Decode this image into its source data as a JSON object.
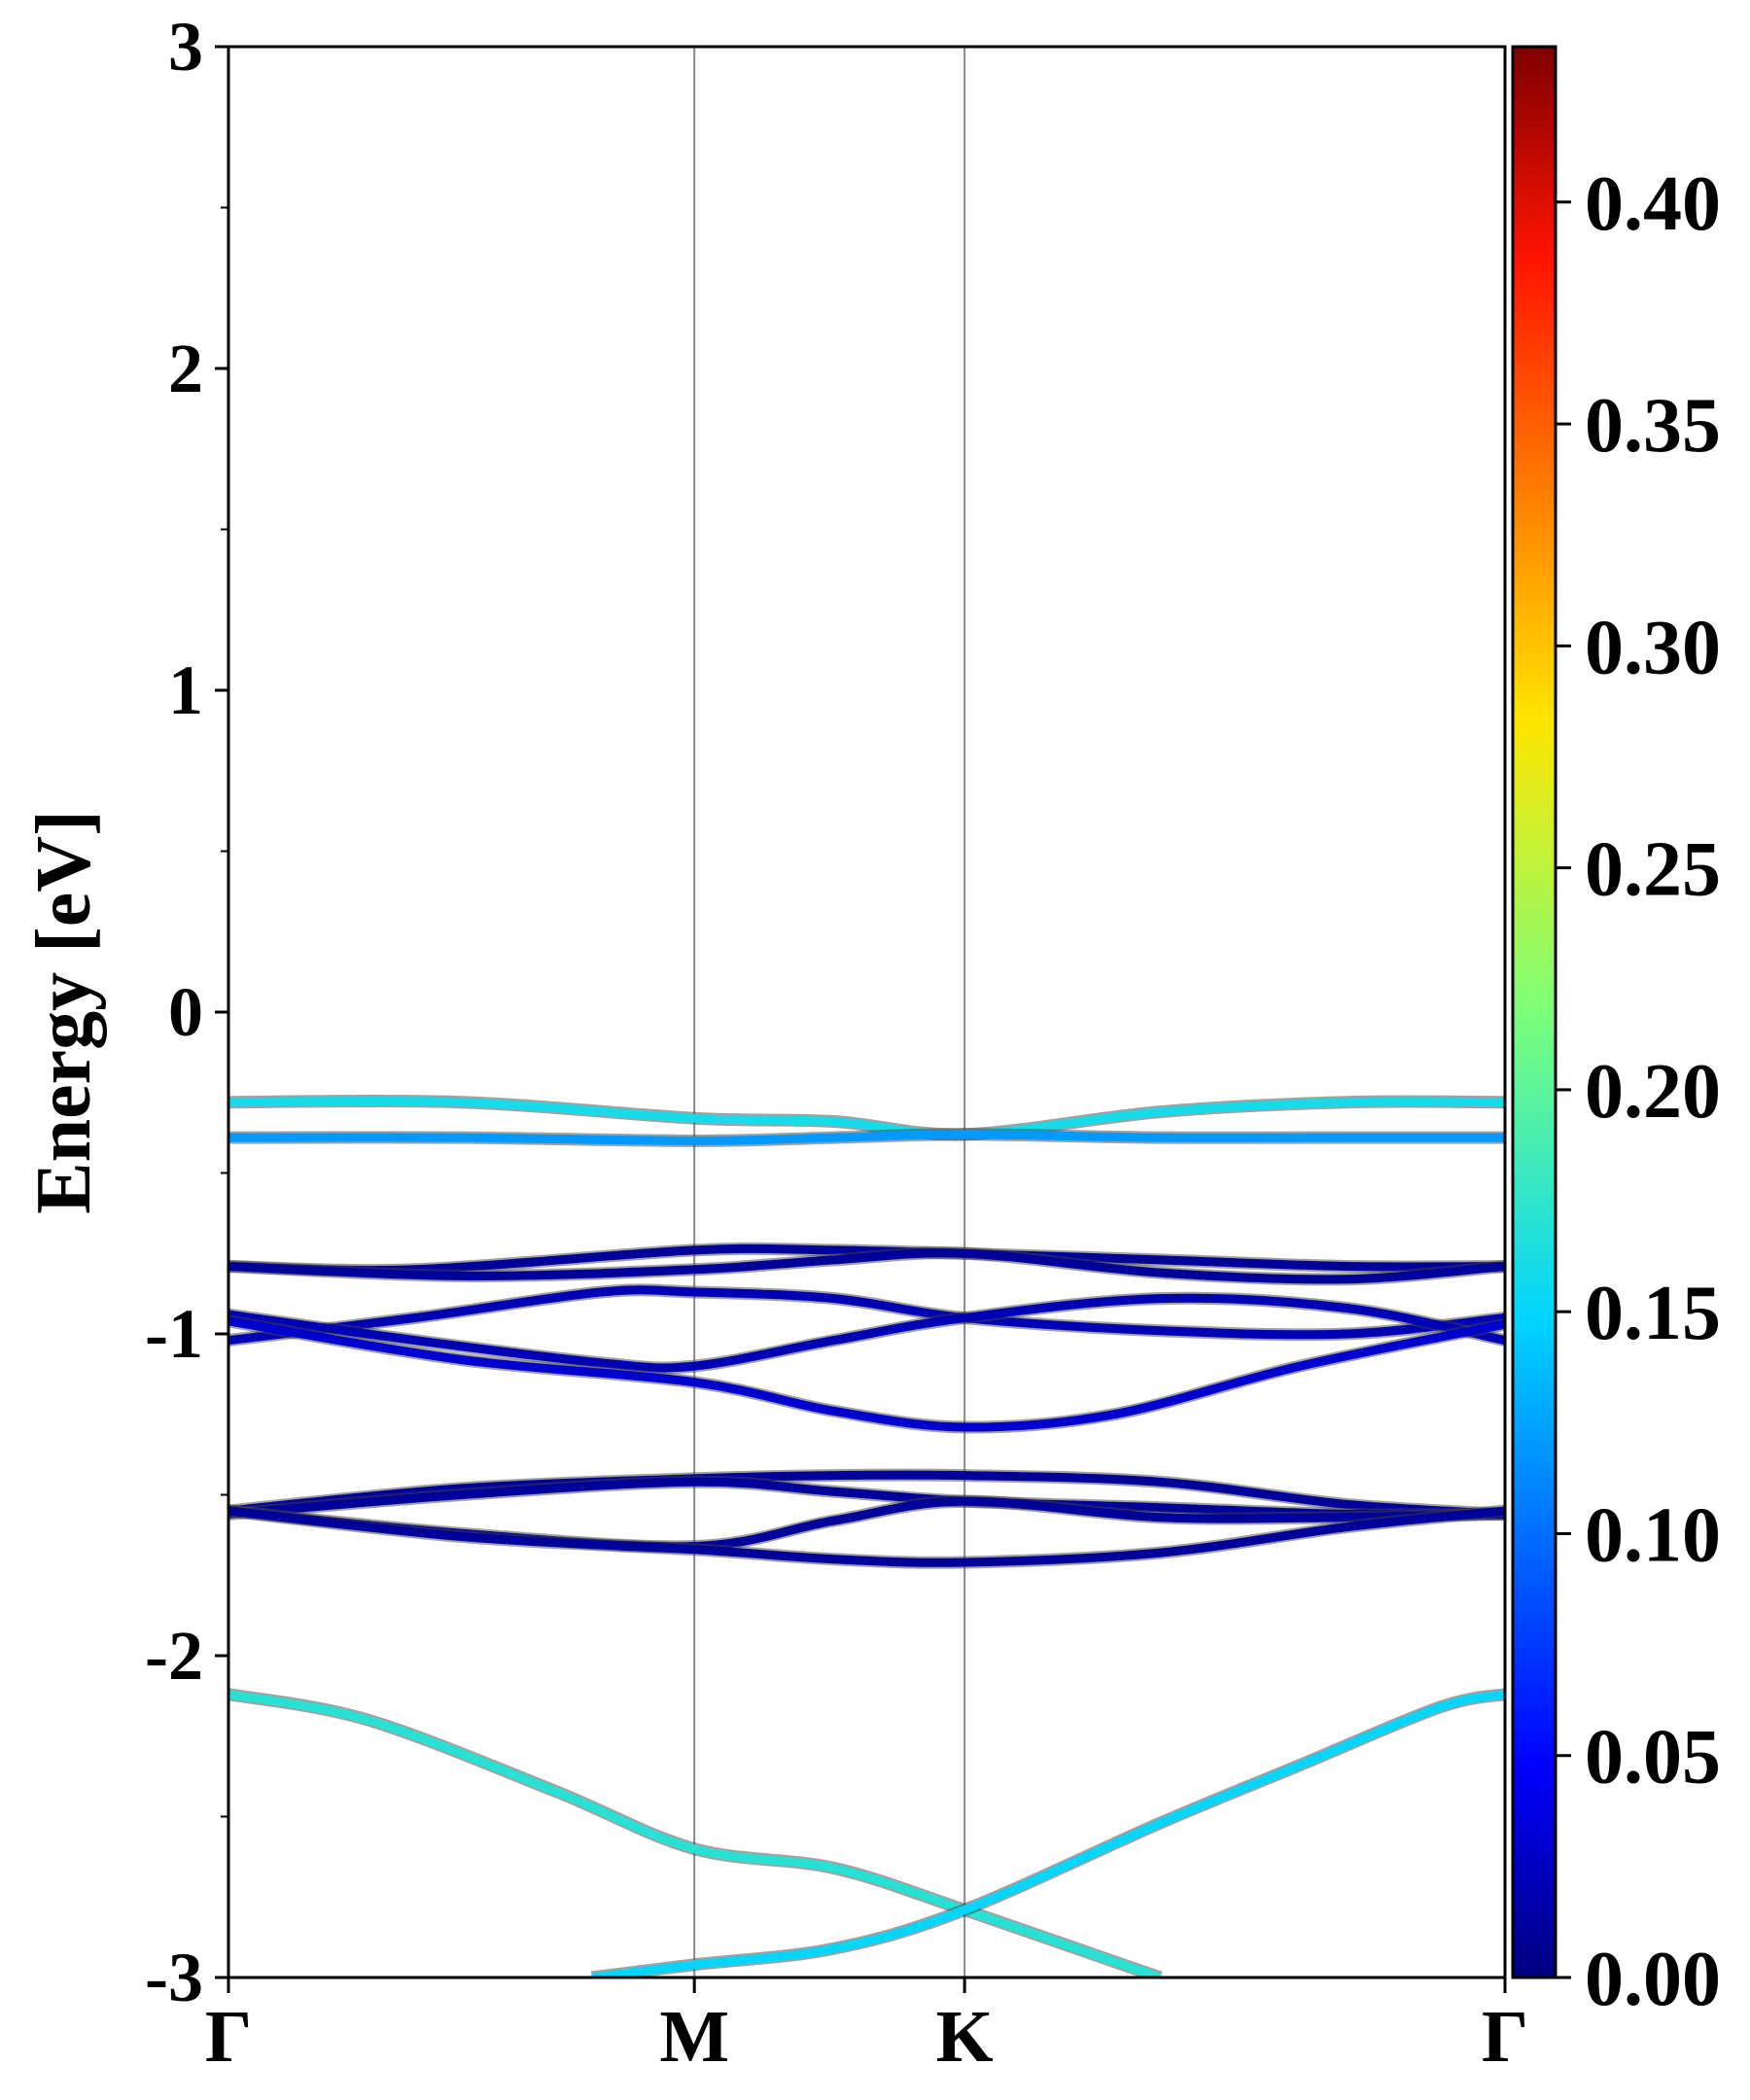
{
  "chart_data": {
    "type": "line",
    "ylabel": "Energy [eV]",
    "ylim": [
      -3,
      3
    ],
    "yticks": [
      {
        "value": 3,
        "label": "3"
      },
      {
        "value": 2,
        "label": "2"
      },
      {
        "value": 1,
        "label": "1"
      },
      {
        "value": 0,
        "label": "0"
      },
      {
        "value": -1,
        "label": "-1"
      },
      {
        "value": -2,
        "label": "-2"
      },
      {
        "value": -3,
        "label": "-3"
      }
    ],
    "yminor_ticks": [
      2.5,
      1.5,
      0.5,
      -0.5,
      -1.5,
      -2.5
    ],
    "k_path": [
      {
        "label": "Γ",
        "k": 0.0
      },
      {
        "label": "M",
        "k": 1.0
      },
      {
        "label": "K",
        "k": 1.58
      },
      {
        "label": "Γ",
        "k": 2.74
      }
    ],
    "colorbar": {
      "colormap": "jet",
      "range": [
        0.0,
        0.435
      ],
      "ticks": [
        {
          "value": 0.0,
          "label": "0.00"
        },
        {
          "value": 0.05,
          "label": "0.05"
        },
        {
          "value": 0.1,
          "label": "0.10"
        },
        {
          "value": 0.15,
          "label": "0.15"
        },
        {
          "value": 0.2,
          "label": "0.20"
        },
        {
          "value": 0.25,
          "label": "0.25"
        },
        {
          "value": 0.3,
          "label": "0.30"
        },
        {
          "value": 0.35,
          "label": "0.35"
        },
        {
          "value": 0.4,
          "label": "0.40"
        }
      ]
    },
    "series": [
      {
        "weight": 0.16,
        "points": [
          [
            0,
            -0.28
          ],
          [
            0.5,
            -0.28
          ],
          [
            1.0,
            -0.33
          ],
          [
            1.3,
            -0.34
          ],
          [
            1.58,
            -0.38
          ],
          [
            2.0,
            -0.31
          ],
          [
            2.4,
            -0.28
          ],
          [
            2.74,
            -0.28
          ]
        ]
      },
      {
        "weight": 0.12,
        "points": [
          [
            0,
            -0.39
          ],
          [
            0.5,
            -0.39
          ],
          [
            1.0,
            -0.4
          ],
          [
            1.3,
            -0.39
          ],
          [
            1.58,
            -0.38
          ],
          [
            2.0,
            -0.39
          ],
          [
            2.4,
            -0.39
          ],
          [
            2.74,
            -0.39
          ]
        ]
      },
      {
        "weight": 0.01,
        "points": [
          [
            0,
            -0.79
          ],
          [
            0.4,
            -0.8
          ],
          [
            1.0,
            -0.74
          ],
          [
            1.3,
            -0.74
          ],
          [
            1.58,
            -0.75
          ],
          [
            2.0,
            -0.77
          ],
          [
            2.4,
            -0.79
          ],
          [
            2.74,
            -0.79
          ]
        ]
      },
      {
        "weight": 0.01,
        "points": [
          [
            0,
            -0.79
          ],
          [
            0.5,
            -0.82
          ],
          [
            1.0,
            -0.8
          ],
          [
            1.3,
            -0.77
          ],
          [
            1.58,
            -0.75
          ],
          [
            2.0,
            -0.81
          ],
          [
            2.4,
            -0.83
          ],
          [
            2.74,
            -0.79
          ]
        ]
      },
      {
        "weight": 0.02,
        "points": [
          [
            0,
            -1.02
          ],
          [
            0.4,
            -0.95
          ],
          [
            0.8,
            -0.87
          ],
          [
            1.0,
            -0.87
          ],
          [
            1.3,
            -0.89
          ],
          [
            1.58,
            -0.95
          ],
          [
            2.0,
            -0.99
          ],
          [
            2.4,
            -1.0
          ],
          [
            2.74,
            -0.95
          ]
        ]
      },
      {
        "weight": 0.02,
        "points": [
          [
            0,
            -0.94
          ],
          [
            0.4,
            -1.02
          ],
          [
            0.8,
            -1.09
          ],
          [
            1.0,
            -1.1
          ],
          [
            1.3,
            -1.02
          ],
          [
            1.58,
            -0.95
          ],
          [
            2.0,
            -0.89
          ],
          [
            2.4,
            -0.92
          ],
          [
            2.74,
            -1.02
          ]
        ]
      },
      {
        "weight": 0.03,
        "points": [
          [
            0,
            -0.96
          ],
          [
            0.5,
            -1.08
          ],
          [
            1.0,
            -1.15
          ],
          [
            1.3,
            -1.24
          ],
          [
            1.58,
            -1.29
          ],
          [
            1.9,
            -1.25
          ],
          [
            2.3,
            -1.1
          ],
          [
            2.74,
            -0.97
          ]
        ]
      },
      {
        "weight": 0.01,
        "points": [
          [
            0,
            -1.55
          ],
          [
            0.5,
            -1.48
          ],
          [
            1.0,
            -1.45
          ],
          [
            1.3,
            -1.44
          ],
          [
            1.58,
            -1.44
          ],
          [
            2.0,
            -1.46
          ],
          [
            2.4,
            -1.53
          ],
          [
            2.74,
            -1.56
          ]
        ]
      },
      {
        "weight": 0.01,
        "points": [
          [
            0,
            -1.56
          ],
          [
            0.5,
            -1.5
          ],
          [
            1.0,
            -1.46
          ],
          [
            1.3,
            -1.49
          ],
          [
            1.58,
            -1.52
          ],
          [
            2.0,
            -1.54
          ],
          [
            2.4,
            -1.56
          ],
          [
            2.74,
            -1.56
          ]
        ]
      },
      {
        "weight": 0.01,
        "points": [
          [
            0,
            -1.55
          ],
          [
            0.5,
            -1.62
          ],
          [
            1.0,
            -1.66
          ],
          [
            1.3,
            -1.58
          ],
          [
            1.58,
            -1.52
          ],
          [
            2.0,
            -1.57
          ],
          [
            2.4,
            -1.57
          ],
          [
            2.74,
            -1.56
          ]
        ]
      },
      {
        "weight": 0.01,
        "points": [
          [
            0,
            -1.55
          ],
          [
            0.5,
            -1.63
          ],
          [
            1.0,
            -1.67
          ],
          [
            1.3,
            -1.7
          ],
          [
            1.58,
            -1.71
          ],
          [
            2.0,
            -1.68
          ],
          [
            2.4,
            -1.6
          ],
          [
            2.74,
            -1.55
          ]
        ]
      },
      {
        "weight": 0.17,
        "points": [
          [
            0,
            -2.12
          ],
          [
            0.3,
            -2.2
          ],
          [
            0.7,
            -2.42
          ],
          [
            1.0,
            -2.6
          ],
          [
            1.3,
            -2.66
          ],
          [
            1.58,
            -2.79
          ],
          [
            1.9,
            -2.95
          ],
          [
            2.0,
            -3.0
          ]
        ]
      },
      {
        "weight": 0.15,
        "points": [
          [
            0.78,
            -3.0
          ],
          [
            1.0,
            -2.96
          ],
          [
            1.3,
            -2.91
          ],
          [
            1.58,
            -2.79
          ],
          [
            2.0,
            -2.52
          ],
          [
            2.3,
            -2.34
          ],
          [
            2.6,
            -2.16
          ],
          [
            2.74,
            -2.12
          ]
        ]
      }
    ]
  }
}
